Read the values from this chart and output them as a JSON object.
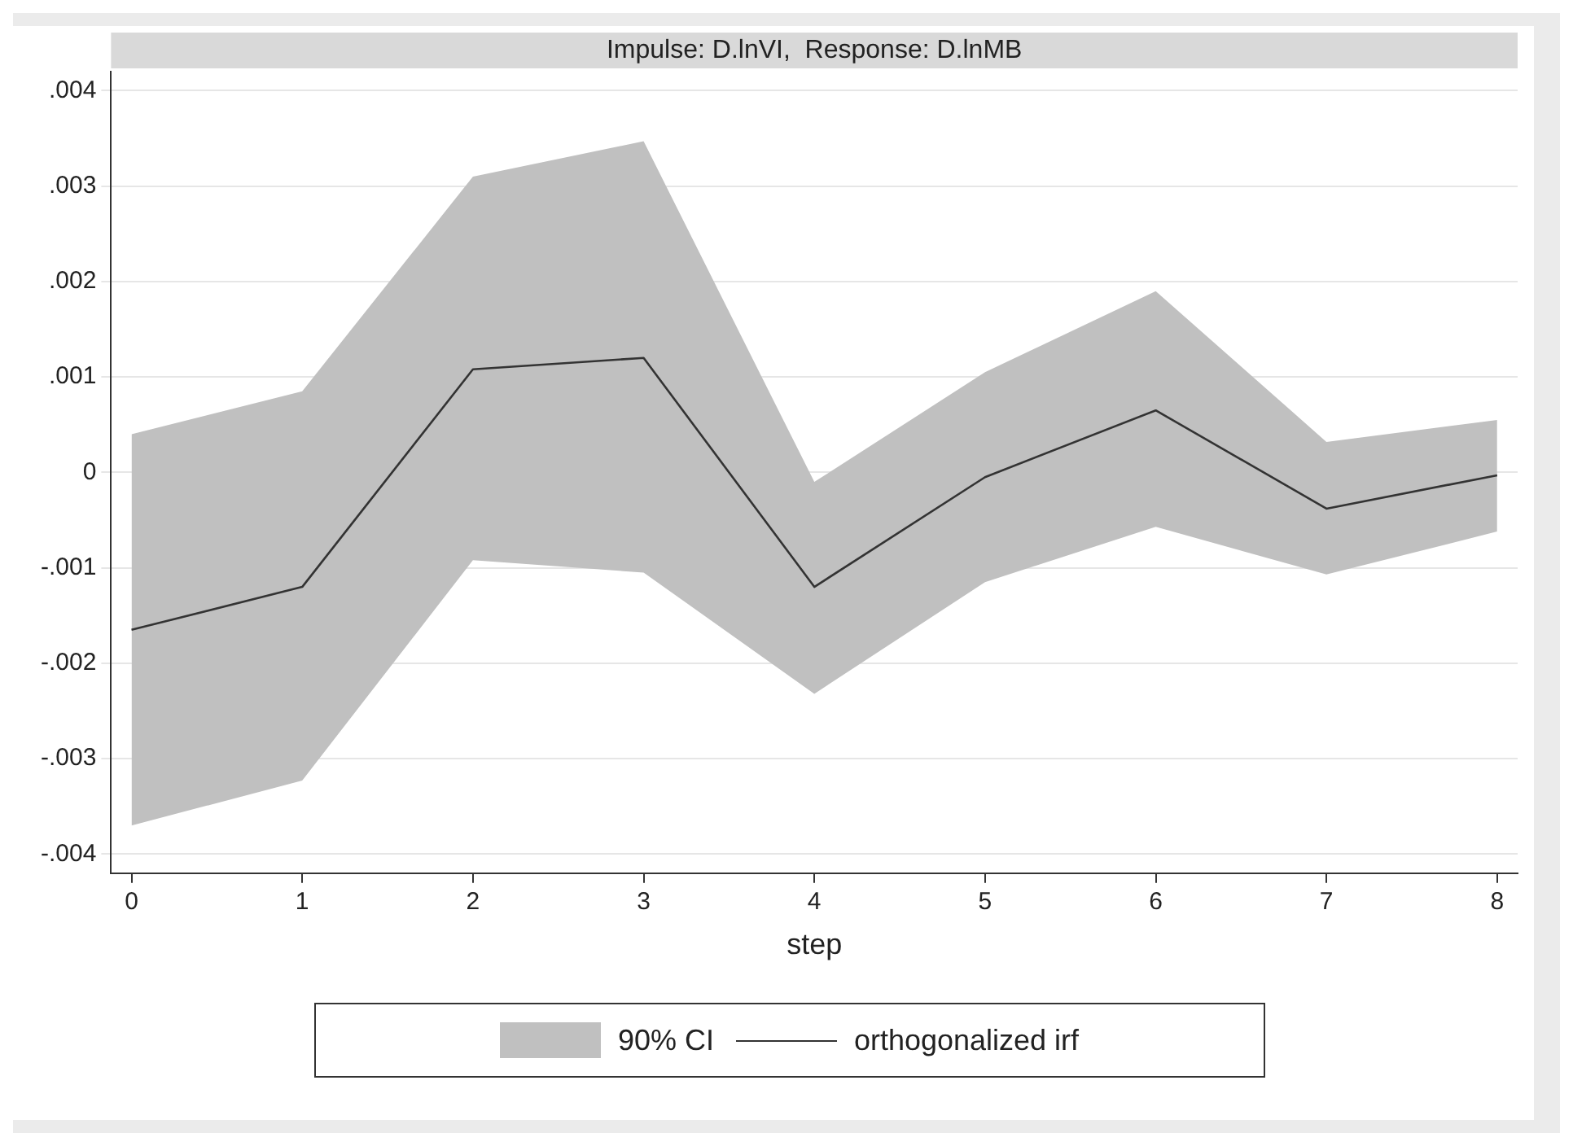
{
  "chart_data": {
    "type": "line",
    "title": "Impulse: D.lnVI,  Response: D.lnMB",
    "xlabel": "step",
    "x": [
      0,
      1,
      2,
      3,
      4,
      5,
      6,
      7,
      8
    ],
    "series": [
      {
        "name": "orthogonalized irf",
        "type": "line",
        "color": "#333333",
        "values": [
          -0.00165,
          -0.0012,
          0.00108,
          0.0012,
          -0.0012,
          -5e-05,
          0.00065,
          -0.00038,
          -3e-05
        ],
        "lower": [
          -0.0037,
          -0.00323,
          -0.00092,
          -0.00105,
          -0.00232,
          -0.00115,
          -0.00057,
          -0.00107,
          -0.00062
        ],
        "upper": [
          0.0004,
          0.00085,
          0.0031,
          0.00347,
          -0.0001,
          0.00105,
          0.0019,
          0.00032,
          0.00055
        ]
      }
    ],
    "annotations": [
      "90% CI"
    ],
    "xlim": [
      -0.12,
      8.12
    ],
    "xticks": [
      0,
      1,
      2,
      3,
      4,
      5,
      6,
      7,
      8
    ],
    "ylim": [
      -0.0042,
      0.0042
    ],
    "yticks": [
      {
        "value": -0.004,
        "label": "-.004"
      },
      {
        "value": -0.003,
        "label": "-.003"
      },
      {
        "value": -0.002,
        "label": "-.002"
      },
      {
        "value": -0.001,
        "label": "-.001"
      },
      0,
      {
        "value": 0.001,
        "label": ".001"
      },
      {
        "value": 0.002,
        "label": ".002"
      },
      {
        "value": 0.003,
        "label": ".003"
      },
      {
        "value": 0.004,
        "label": ".004"
      }
    ],
    "grid": "y",
    "legend": "bottom",
    "marker": "none",
    "line_style": "solid"
  }
}
